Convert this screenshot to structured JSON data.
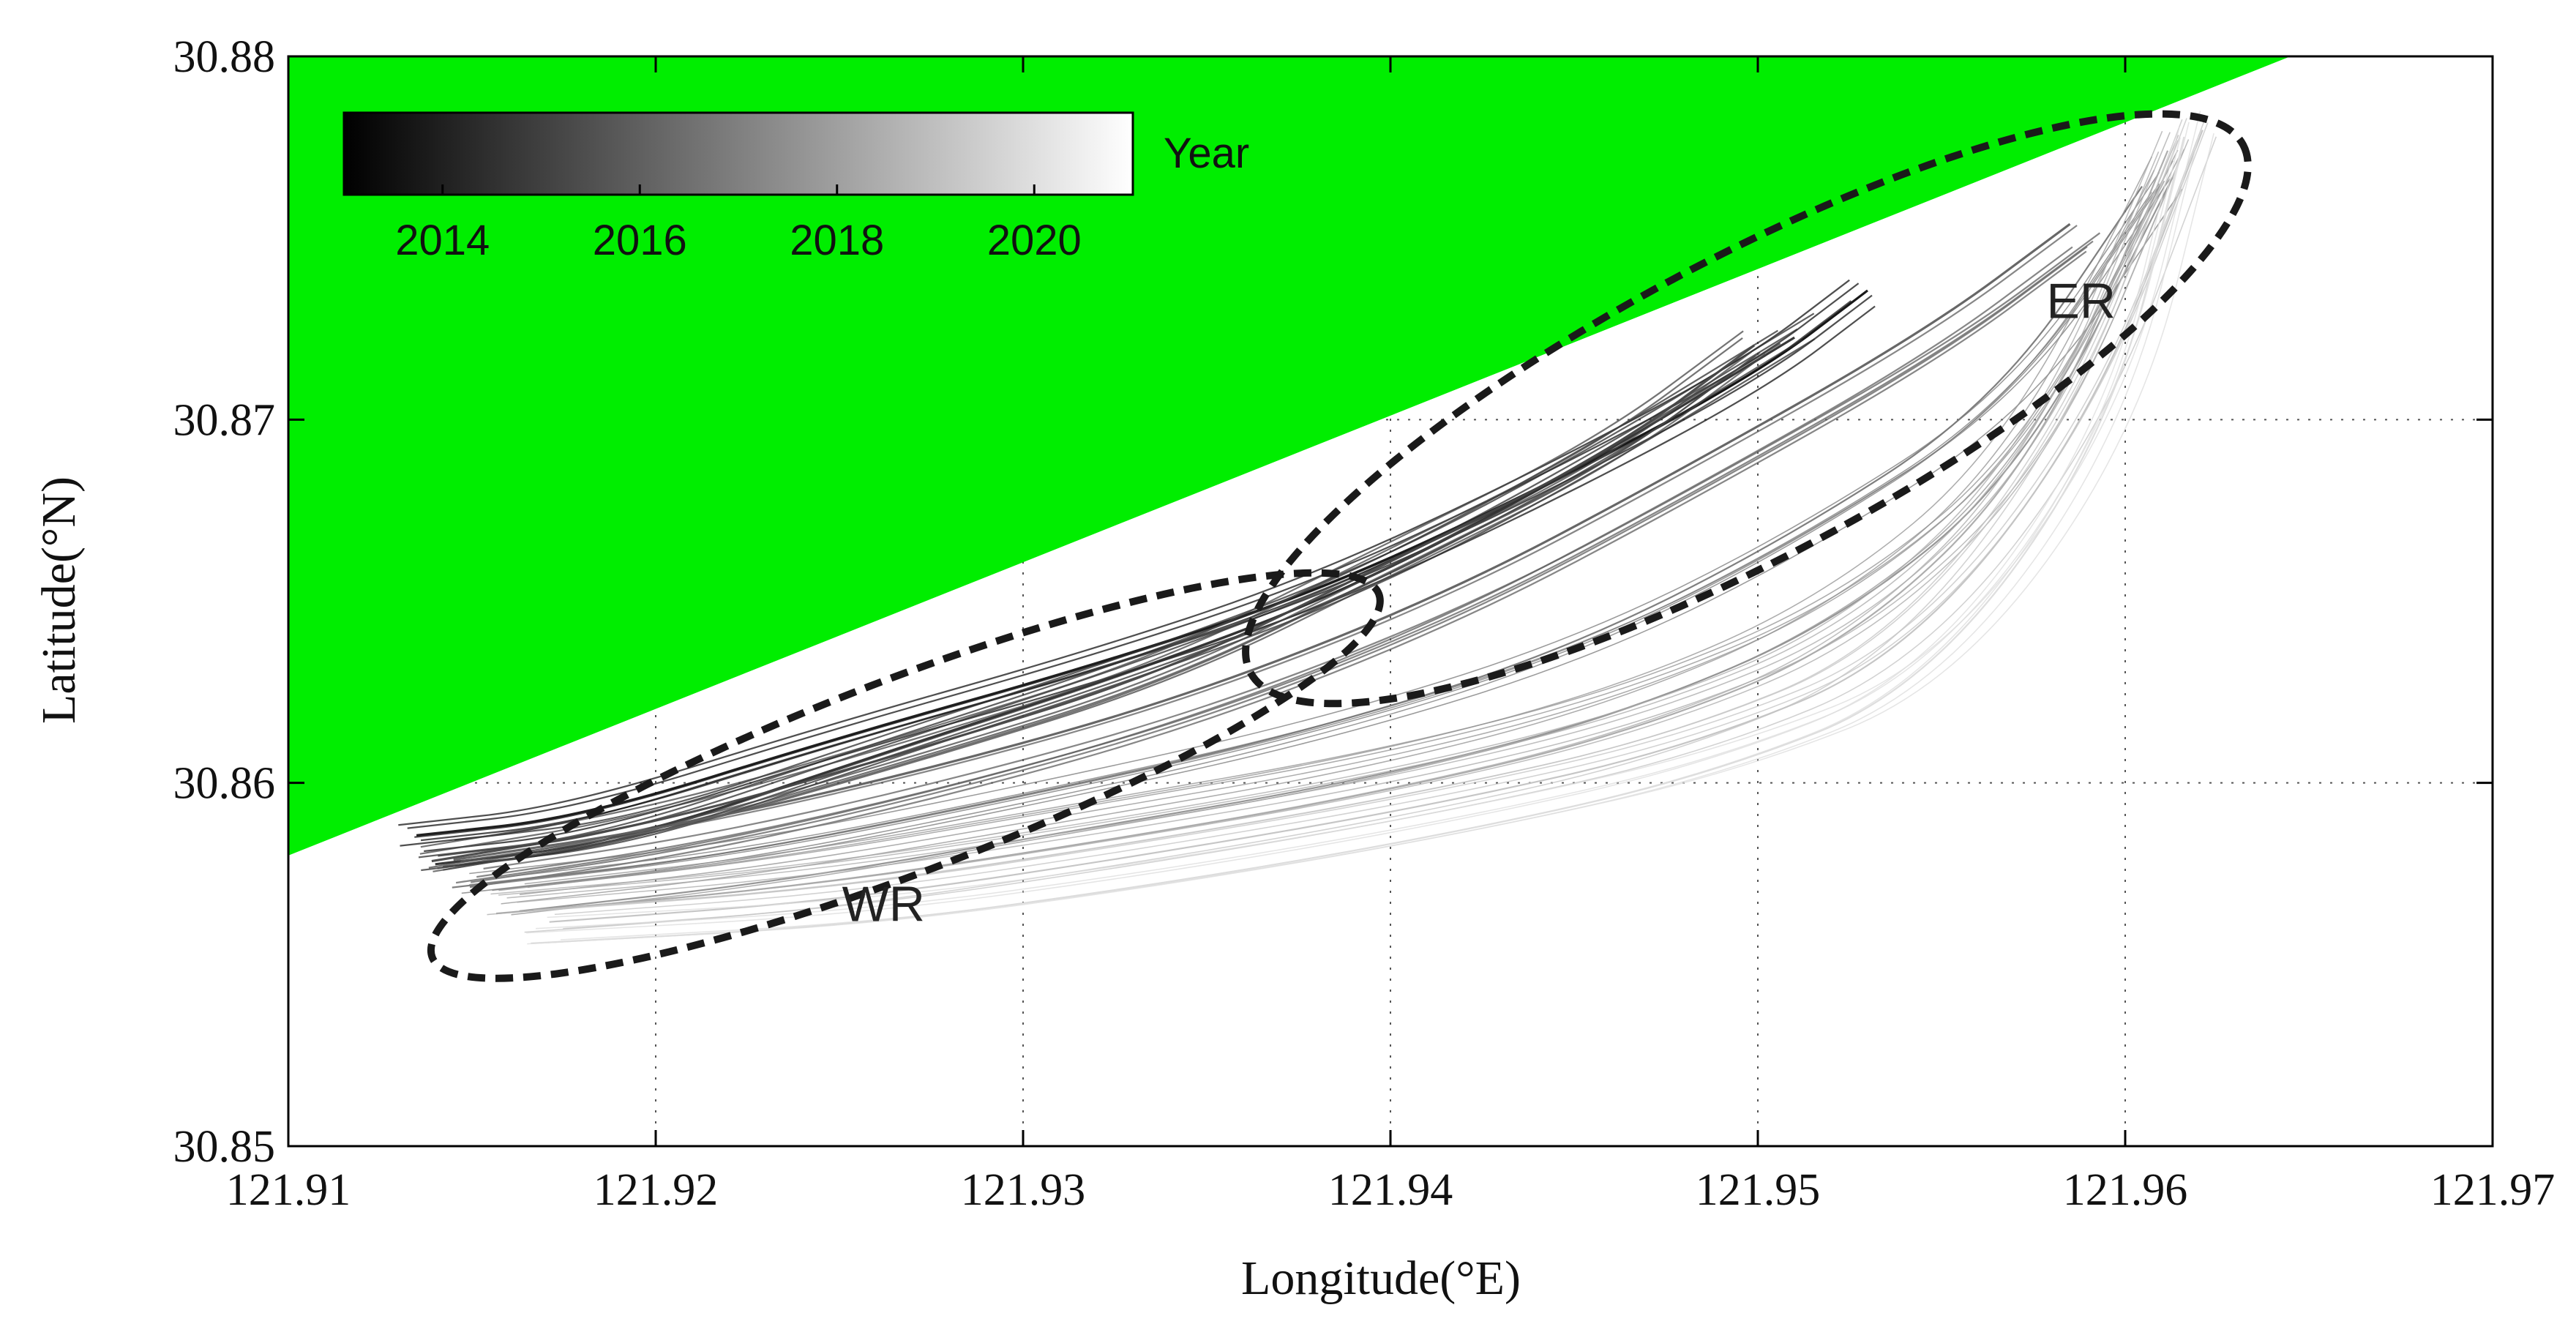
{
  "chart_data": {
    "type": "line",
    "title": "",
    "xlabel": "Longitude(°E)",
    "ylabel": "Latitude(°N)",
    "xlim": [
      121.91,
      121.97
    ],
    "ylim": [
      30.85,
      30.88
    ],
    "xticks": [
      121.91,
      121.92,
      121.93,
      121.94,
      121.95,
      121.96,
      121.97
    ],
    "yticks": [
      30.85,
      30.86,
      30.87,
      30.88
    ],
    "xtick_labels": [
      "121.91",
      "121.92",
      "121.93",
      "121.94",
      "121.95",
      "121.96",
      "121.97"
    ],
    "ytick_labels": [
      "30.85",
      "30.86",
      "30.87",
      "30.88"
    ],
    "grid": "dotted",
    "land_color": "#00ee00",
    "land_polygon": [
      [
        121.91,
        30.88
      ],
      [
        121.9645,
        30.88
      ],
      [
        121.91,
        30.858
      ]
    ],
    "colorbar": {
      "label": "Year",
      "range": [
        2013,
        2021
      ],
      "ticks": [
        2014,
        2016,
        2018,
        2020
      ],
      "tick_labels": [
        "2014",
        "2016",
        "2018",
        "2020"
      ],
      "colormap": "gray (black to white)",
      "placement": "top-left"
    },
    "regions": [
      {
        "name": "WR",
        "center": [
          121.9268,
          30.8602
        ],
        "semi_axes": [
          0.0138,
          0.00265
        ],
        "rotation_deg": 21
      },
      {
        "name": "ER",
        "center": [
          121.9497,
          30.8703
        ],
        "semi_axes": [
          0.0153,
          0.0041
        ],
        "rotation_deg": 28
      }
    ],
    "series_description": "Hundreds of shoreline/channel trajectory lines colored by year (darker = earlier, lighter = later) running from SW (121.914, 30.858) to NE (121.962, 30.878)",
    "series": [
      {
        "name": "2013",
        "year": 2013,
        "values": [
          [
            121.9135,
            30.8585
          ],
          [
            121.918,
            30.859
          ],
          [
            121.925,
            30.8612
          ],
          [
            121.932,
            30.8632
          ],
          [
            121.938,
            30.8652
          ],
          [
            121.944,
            30.868
          ],
          [
            121.95,
            30.8712
          ],
          [
            121.953,
            30.8735
          ]
        ]
      },
      {
        "name": "2014",
        "year": 2014,
        "values": [
          [
            121.914,
            30.858
          ],
          [
            121.919,
            30.8586
          ],
          [
            121.926,
            30.861
          ],
          [
            121.933,
            30.8633
          ],
          [
            121.939,
            30.8656
          ],
          [
            121.945,
            30.8688
          ],
          [
            121.951,
            30.8725
          ]
        ]
      },
      {
        "name": "2015",
        "year": 2015,
        "values": [
          [
            121.914,
            30.8578
          ],
          [
            121.92,
            30.8588
          ],
          [
            121.927,
            30.8608
          ],
          [
            121.934,
            30.863
          ],
          [
            121.94,
            30.866
          ],
          [
            121.946,
            30.869
          ],
          [
            121.95,
            30.872
          ]
        ]
      },
      {
        "name": "2016",
        "year": 2016,
        "values": [
          [
            121.915,
            30.8575
          ],
          [
            121.921,
            30.8584
          ],
          [
            121.928,
            30.86
          ],
          [
            121.935,
            30.862
          ],
          [
            121.942,
            30.8648
          ],
          [
            121.948,
            30.868
          ],
          [
            121.955,
            30.872
          ],
          [
            121.959,
            30.875
          ]
        ]
      },
      {
        "name": "2017",
        "year": 2017,
        "values": [
          [
            121.915,
            30.8572
          ],
          [
            121.922,
            30.858
          ],
          [
            121.93,
            30.8596
          ],
          [
            121.938,
            30.8614
          ],
          [
            121.945,
            30.8636
          ],
          [
            121.951,
            30.8666
          ],
          [
            121.957,
            30.8705
          ],
          [
            121.961,
            30.8765
          ]
        ]
      },
      {
        "name": "2018",
        "year": 2018,
        "values": [
          [
            121.916,
            30.8568
          ],
          [
            121.923,
            30.8576
          ],
          [
            121.931,
            30.859
          ],
          [
            121.939,
            30.8604
          ],
          [
            121.946,
            30.8622
          ],
          [
            121.952,
            30.8648
          ],
          [
            121.957,
            30.869
          ],
          [
            121.961,
            30.877
          ]
        ]
      },
      {
        "name": "2019",
        "year": 2019,
        "values": [
          [
            121.916,
            30.8565
          ],
          [
            121.924,
            30.8572
          ],
          [
            121.932,
            30.8584
          ],
          [
            121.94,
            30.8598
          ],
          [
            121.947,
            30.8615
          ],
          [
            121.953,
            30.864
          ],
          [
            121.958,
            30.869
          ],
          [
            121.9615,
            30.8775
          ]
        ]
      },
      {
        "name": "2020",
        "year": 2020,
        "values": [
          [
            121.917,
            30.8562
          ],
          [
            121.925,
            30.8568
          ],
          [
            121.933,
            30.858
          ],
          [
            121.941,
            30.8594
          ],
          [
            121.948,
            30.861
          ],
          [
            121.954,
            30.8635
          ],
          [
            121.959,
            30.87
          ],
          [
            121.962,
            30.878
          ]
        ]
      },
      {
        "name": "2021",
        "year": 2021,
        "values": [
          [
            121.917,
            30.856
          ],
          [
            121.926,
            30.8565
          ],
          [
            121.934,
            30.8576
          ],
          [
            121.942,
            30.859
          ],
          [
            121.949,
            30.8606
          ],
          [
            121.955,
            30.863
          ],
          [
            121.96,
            30.87
          ],
          [
            121.962,
            30.8782
          ]
        ]
      }
    ]
  }
}
